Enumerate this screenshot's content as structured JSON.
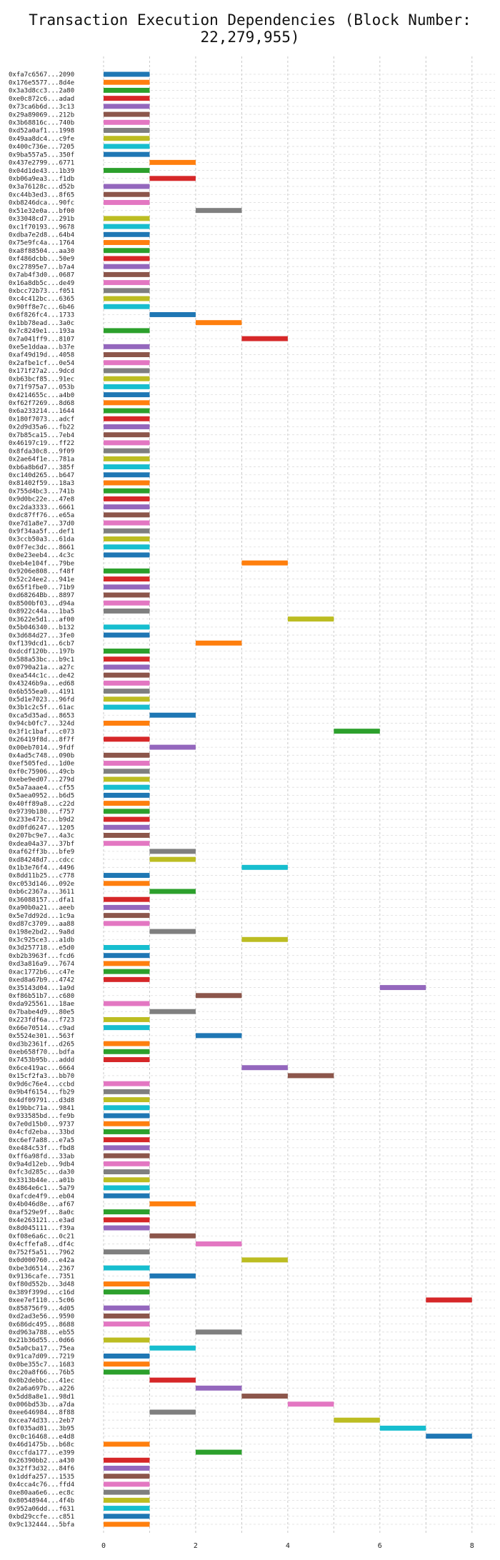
{
  "chart_data": {
    "type": "bar",
    "orientation": "horizontal-gantt",
    "title": "Transaction Execution Dependencies (Block Number: 22,279,955)",
    "xlabel": "",
    "ylabel": "",
    "xlim": [
      0,
      8.5
    ],
    "xticks": [
      0,
      2,
      4,
      6,
      8
    ],
    "grid": true,
    "legend": "none",
    "palette": [
      "#1f77b4",
      "#ff7f0e",
      "#2ca02c",
      "#d62728",
      "#9467bd",
      "#8c564b",
      "#e377c2",
      "#7f7f7f",
      "#bcbd22",
      "#17becf"
    ],
    "transactions": [
      {
        "label": "0xfa7c6567...2090",
        "start": 0,
        "end": 1
      },
      {
        "label": "0x176e5577...8d4e",
        "start": 0,
        "end": 1
      },
      {
        "label": "0x3a3d8cc3...2a80",
        "start": 0,
        "end": 1
      },
      {
        "label": "0xe0c872c6...adad",
        "start": 0,
        "end": 1
      },
      {
        "label": "0x73ca6b6d...3c13",
        "start": 0,
        "end": 1
      },
      {
        "label": "0x29a89069...212b",
        "start": 0,
        "end": 1
      },
      {
        "label": "0x3b68816c...740b",
        "start": 0,
        "end": 1
      },
      {
        "label": "0xd52a0af1...1998",
        "start": 0,
        "end": 1
      },
      {
        "label": "0x49aa8dc4...c9fe",
        "start": 0,
        "end": 1
      },
      {
        "label": "0x400c736e...7205",
        "start": 0,
        "end": 1
      },
      {
        "label": "0x9ba557a5...350f",
        "start": 0,
        "end": 1
      },
      {
        "label": "0x437e2799...6771",
        "start": 1,
        "end": 2
      },
      {
        "label": "0x04d1de43...1b39",
        "start": 0,
        "end": 1
      },
      {
        "label": "0xb06a9ea3...f1db",
        "start": 1,
        "end": 2
      },
      {
        "label": "0x3a76128c...d52b",
        "start": 0,
        "end": 1
      },
      {
        "label": "0xc44b3ed3...8f65",
        "start": 0,
        "end": 1
      },
      {
        "label": "0xb8246dca...90fc",
        "start": 0,
        "end": 1
      },
      {
        "label": "0x51e32e0a...bf00",
        "start": 2,
        "end": 3
      },
      {
        "label": "0x33048cd7...291b",
        "start": 0,
        "end": 1
      },
      {
        "label": "0xc1f70193...9678",
        "start": 0,
        "end": 1
      },
      {
        "label": "0xdba7e2d8...64b4",
        "start": 0,
        "end": 1
      },
      {
        "label": "0x75e9fc4a...1764",
        "start": 0,
        "end": 1
      },
      {
        "label": "0xa8f88504...aa30",
        "start": 0,
        "end": 1
      },
      {
        "label": "0xf486dcbb...50e9",
        "start": 0,
        "end": 1
      },
      {
        "label": "0xc27895e7...b7a4",
        "start": 0,
        "end": 1
      },
      {
        "label": "0x7ab4f3d0...0687",
        "start": 0,
        "end": 1
      },
      {
        "label": "0x16a8db5c...de49",
        "start": 0,
        "end": 1
      },
      {
        "label": "0xbcc72b73...f051",
        "start": 0,
        "end": 1
      },
      {
        "label": "0xc4c412bc...6365",
        "start": 0,
        "end": 1
      },
      {
        "label": "0x90ff8e7c...6b46",
        "start": 0,
        "end": 1
      },
      {
        "label": "0x6f826fc4...1733",
        "start": 1,
        "end": 2
      },
      {
        "label": "0x1bb78ead...3a0c",
        "start": 2,
        "end": 3
      },
      {
        "label": "0x7c8249e1...193a",
        "start": 0,
        "end": 1
      },
      {
        "label": "0x7a041ff9...8107",
        "start": 3,
        "end": 4
      },
      {
        "label": "0xe5e1ddaa...b37e",
        "start": 0,
        "end": 1
      },
      {
        "label": "0xaf49d19d...4058",
        "start": 0,
        "end": 1
      },
      {
        "label": "0x2afbe1cf...0e54",
        "start": 0,
        "end": 1
      },
      {
        "label": "0x171f27a2...9dcd",
        "start": 0,
        "end": 1
      },
      {
        "label": "0xb63bcf85...91ec",
        "start": 0,
        "end": 1
      },
      {
        "label": "0x71f975a7...053b",
        "start": 0,
        "end": 1
      },
      {
        "label": "0x4214655c...a4b0",
        "start": 0,
        "end": 1
      },
      {
        "label": "0xf62f7269...8d68",
        "start": 0,
        "end": 1
      },
      {
        "label": "0x6a233214...1644",
        "start": 0,
        "end": 1
      },
      {
        "label": "0x180f7073...adcf",
        "start": 0,
        "end": 1
      },
      {
        "label": "0x2d9d35a6...fb22",
        "start": 0,
        "end": 1
      },
      {
        "label": "0x7b85ca15...7eb4",
        "start": 0,
        "end": 1
      },
      {
        "label": "0x46197c19...ff22",
        "start": 0,
        "end": 1
      },
      {
        "label": "0x8fda30c8...9f09",
        "start": 0,
        "end": 1
      },
      {
        "label": "0x2ae64f1e...781a",
        "start": 0,
        "end": 1
      },
      {
        "label": "0xb6a8b6d7...385f",
        "start": 0,
        "end": 1
      },
      {
        "label": "0xc140d265...b647",
        "start": 0,
        "end": 1
      },
      {
        "label": "0x81402f59...18a3",
        "start": 0,
        "end": 1
      },
      {
        "label": "0x755d4bc3...741b",
        "start": 0,
        "end": 1
      },
      {
        "label": "0x9d0bc22e...47e8",
        "start": 0,
        "end": 1
      },
      {
        "label": "0xc2da3333...6661",
        "start": 0,
        "end": 1
      },
      {
        "label": "0xdc87ff76...e65a",
        "start": 0,
        "end": 1
      },
      {
        "label": "0xe7d1a8e7...37d0",
        "start": 0,
        "end": 1
      },
      {
        "label": "0x9f34aa5f...def1",
        "start": 0,
        "end": 1
      },
      {
        "label": "0x3ccb50a3...61da",
        "start": 0,
        "end": 1
      },
      {
        "label": "0x0f7ec3dc...8661",
        "start": 0,
        "end": 1
      },
      {
        "label": "0x0e23eeb4...4c3c",
        "start": 0,
        "end": 1
      },
      {
        "label": "0xeb4e104f...79be",
        "start": 3,
        "end": 4
      },
      {
        "label": "0x9206e808...f48f",
        "start": 0,
        "end": 1
      },
      {
        "label": "0x52c24ee2...941e",
        "start": 0,
        "end": 1
      },
      {
        "label": "0x65f1fbe0...71b9",
        "start": 0,
        "end": 1
      },
      {
        "label": "0xd68264Bb...8897",
        "start": 0,
        "end": 1
      },
      {
        "label": "0x8500bf03...d94a",
        "start": 0,
        "end": 1
      },
      {
        "label": "0x8922c44a...1ba5",
        "start": 0,
        "end": 1
      },
      {
        "label": "0x3622e5d1...af00",
        "start": 4,
        "end": 5
      },
      {
        "label": "0x5b046340...b132",
        "start": 0,
        "end": 1
      },
      {
        "label": "0x3d684d27...3fe0",
        "start": 0,
        "end": 1
      },
      {
        "label": "0xf139dcd1...6cb7",
        "start": 2,
        "end": 3
      },
      {
        "label": "0xdcdf120b...197b",
        "start": 0,
        "end": 1
      },
      {
        "label": "0x588a53bc...b9c1",
        "start": 0,
        "end": 1
      },
      {
        "label": "0x0790a21a...a27c",
        "start": 0,
        "end": 1
      },
      {
        "label": "0xea544c1c...de42",
        "start": 0,
        "end": 1
      },
      {
        "label": "0x43246b9a...ed68",
        "start": 0,
        "end": 1
      },
      {
        "label": "0x6b555ea0...4191",
        "start": 0,
        "end": 1
      },
      {
        "label": "0x5d1e7023...96fd",
        "start": 0,
        "end": 1
      },
      {
        "label": "0x3b1c2c5f...61ac",
        "start": 0,
        "end": 1
      },
      {
        "label": "0xca5d35ad...8653",
        "start": 1,
        "end": 2
      },
      {
        "label": "0x94cb0fc7...324d",
        "start": 0,
        "end": 1
      },
      {
        "label": "0x3f1c1baf...c073",
        "start": 5,
        "end": 6
      },
      {
        "label": "0x26419f8d...8f7f",
        "start": 0,
        "end": 1
      },
      {
        "label": "0x00eb7014...9fdf",
        "start": 1,
        "end": 2
      },
      {
        "label": "0x4ad5c748...090b",
        "start": 0,
        "end": 1
      },
      {
        "label": "0xef505fed...1d0e",
        "start": 0,
        "end": 1
      },
      {
        "label": "0xf0c75906...49cb",
        "start": 0,
        "end": 1
      },
      {
        "label": "0xebe9ed07...279d",
        "start": 0,
        "end": 1
      },
      {
        "label": "0x5a7aaae4...cf55",
        "start": 0,
        "end": 1
      },
      {
        "label": "0x5aea0952...b6d5",
        "start": 0,
        "end": 1
      },
      {
        "label": "0x40ff89a8...c22d",
        "start": 0,
        "end": 1
      },
      {
        "label": "0x9739b180...f757",
        "start": 0,
        "end": 1
      },
      {
        "label": "0x233e473c...b9d2",
        "start": 0,
        "end": 1
      },
      {
        "label": "0xd0fd6247...1205",
        "start": 0,
        "end": 1
      },
      {
        "label": "0x207bc9e7...4a3c",
        "start": 0,
        "end": 1
      },
      {
        "label": "0xdea04a37...37bf",
        "start": 0,
        "end": 1
      },
      {
        "label": "0xaf62ff3b...bfe9",
        "start": 1,
        "end": 2
      },
      {
        "label": "0xd84248d7...cdcc",
        "start": 1,
        "end": 2
      },
      {
        "label": "0x1b3e76f4...4496",
        "start": 3,
        "end": 4
      },
      {
        "label": "0x8dd11b25...c778",
        "start": 0,
        "end": 1
      },
      {
        "label": "0xc053d146...092e",
        "start": 0,
        "end": 1
      },
      {
        "label": "0xb6c2367a...3611",
        "start": 1,
        "end": 2
      },
      {
        "label": "0x36088157...dfa1",
        "start": 0,
        "end": 1
      },
      {
        "label": "0xa90b0a21...aeeb",
        "start": 0,
        "end": 1
      },
      {
        "label": "0x5e7dd92d...1c9a",
        "start": 0,
        "end": 1
      },
      {
        "label": "0xd87c3709...aa88",
        "start": 0,
        "end": 1
      },
      {
        "label": "0x198e2bd2...9a8d",
        "start": 1,
        "end": 2
      },
      {
        "label": "0x3c925ce3...a1db",
        "start": 3,
        "end": 4
      },
      {
        "label": "0x3d257718...e5d0",
        "start": 0,
        "end": 1
      },
      {
        "label": "0xb2b3963f...fcd6",
        "start": 0,
        "end": 1
      },
      {
        "label": "0xd3a816a9...7674",
        "start": 0,
        "end": 1
      },
      {
        "label": "0xac1772b6...c47e",
        "start": 0,
        "end": 1
      },
      {
        "label": "0xed8a67b9...4742",
        "start": 0,
        "end": 1
      },
      {
        "label": "0x35143d04...1a9d",
        "start": 6,
        "end": 7
      },
      {
        "label": "0xf86b51b7...c680",
        "start": 2,
        "end": 3
      },
      {
        "label": "0xda925561...18ae",
        "start": 0,
        "end": 1
      },
      {
        "label": "0x7babe4d9...80e5",
        "start": 1,
        "end": 2
      },
      {
        "label": "0x223fdf6a...f723",
        "start": 0,
        "end": 1
      },
      {
        "label": "0x66e70514...c9ad",
        "start": 0,
        "end": 1
      },
      {
        "label": "0x5524e301...563f",
        "start": 2,
        "end": 3
      },
      {
        "label": "0xd3b2361f...d265",
        "start": 0,
        "end": 1
      },
      {
        "label": "0xeb658f70...bdfa",
        "start": 0,
        "end": 1
      },
      {
        "label": "0x7453b95b...addd",
        "start": 0,
        "end": 1
      },
      {
        "label": "0x6ce419ac...6664",
        "start": 3,
        "end": 4
      },
      {
        "label": "0x15cf2fa3...bb70",
        "start": 4,
        "end": 5
      },
      {
        "label": "0x9d6c76e4...ccbd",
        "start": 0,
        "end": 1
      },
      {
        "label": "0x9b4f6154...fb29",
        "start": 0,
        "end": 1
      },
      {
        "label": "0x4df09791...d3d8",
        "start": 0,
        "end": 1
      },
      {
        "label": "0x19bbc71a...9841",
        "start": 0,
        "end": 1
      },
      {
        "label": "0x933585bd...fe9b",
        "start": 0,
        "end": 1
      },
      {
        "label": "0x7e0d15b0...9737",
        "start": 0,
        "end": 1
      },
      {
        "label": "0x4cfd2eba...33bd",
        "start": 0,
        "end": 1
      },
      {
        "label": "0xc6ef7a88...e7a5",
        "start": 0,
        "end": 1
      },
      {
        "label": "0xe484c53f...fbd8",
        "start": 0,
        "end": 1
      },
      {
        "label": "0xff6a98fd...33ab",
        "start": 0,
        "end": 1
      },
      {
        "label": "0x9a4d12eb...9db4",
        "start": 0,
        "end": 1
      },
      {
        "label": "0xfc3d285c...da30",
        "start": 0,
        "end": 1
      },
      {
        "label": "0x3313b44e...a01b",
        "start": 0,
        "end": 1
      },
      {
        "label": "0x4864e6c1...5a79",
        "start": 0,
        "end": 1
      },
      {
        "label": "0xafcde4f9...eb04",
        "start": 0,
        "end": 1
      },
      {
        "label": "0x4b046d8e...af67",
        "start": 1,
        "end": 2
      },
      {
        "label": "0xaf529e9f...8a0c",
        "start": 0,
        "end": 1
      },
      {
        "label": "0x4e263121...e3ad",
        "start": 0,
        "end": 1
      },
      {
        "label": "0x8d045111...f39a",
        "start": 0,
        "end": 1
      },
      {
        "label": "0xf08e6a6c...0c21",
        "start": 1,
        "end": 2
      },
      {
        "label": "0x4cffefa8...df4c",
        "start": 2,
        "end": 3
      },
      {
        "label": "0x752f5a51...7962",
        "start": 0,
        "end": 1
      },
      {
        "label": "0x0d000760...e42a",
        "start": 3,
        "end": 4
      },
      {
        "label": "0xbe3d6514...2367",
        "start": 0,
        "end": 1
      },
      {
        "label": "0x9136cafe...7351",
        "start": 1,
        "end": 2
      },
      {
        "label": "0xf80d552b...3d48",
        "start": 0,
        "end": 1
      },
      {
        "label": "0x389f399d...c16d",
        "start": 0,
        "end": 1
      },
      {
        "label": "0xee7ef110...5c06",
        "start": 7,
        "end": 8
      },
      {
        "label": "0x858756f9...4d05",
        "start": 0,
        "end": 1
      },
      {
        "label": "0xd2ad3e56...9590",
        "start": 0,
        "end": 1
      },
      {
        "label": "0x686dc495...8688",
        "start": 0,
        "end": 1
      },
      {
        "label": "0xd963a788...eb55",
        "start": 2,
        "end": 3
      },
      {
        "label": "0x21b36d55...0d66",
        "start": 0,
        "end": 1
      },
      {
        "label": "0x5a0cba17...75ea",
        "start": 1,
        "end": 2
      },
      {
        "label": "0x91ca7d09...7219",
        "start": 0,
        "end": 1
      },
      {
        "label": "0x0be355c7...1683",
        "start": 0,
        "end": 1
      },
      {
        "label": "0xc20a8f66...76b5",
        "start": 0,
        "end": 1
      },
      {
        "label": "0x0b2debbc...41ec",
        "start": 1,
        "end": 2
      },
      {
        "label": "0x2a6a697b...a226",
        "start": 2,
        "end": 3
      },
      {
        "label": "0x5dd8a8e1...98d1",
        "start": 3,
        "end": 4
      },
      {
        "label": "0x006bd53b...a7da",
        "start": 4,
        "end": 5
      },
      {
        "label": "0xee646984...8f88",
        "start": 1,
        "end": 2
      },
      {
        "label": "0xcea74d33...2eb7",
        "start": 5,
        "end": 6
      },
      {
        "label": "0xf035ad81...3b95",
        "start": 6,
        "end": 7
      },
      {
        "label": "0xc0c16468...e4d8",
        "start": 7,
        "end": 8
      },
      {
        "label": "0x46d1475b...b68c",
        "start": 0,
        "end": 1
      },
      {
        "label": "0xccfda177...e399",
        "start": 2,
        "end": 3
      },
      {
        "label": "0x26390bb2...a430",
        "start": 0,
        "end": 1
      },
      {
        "label": "0x32ff3d32...84f6",
        "start": 0,
        "end": 1
      },
      {
        "label": "0x1ddfa257...1535",
        "start": 0,
        "end": 1
      },
      {
        "label": "0x4cca4c76...ffd4",
        "start": 0,
        "end": 1
      },
      {
        "label": "0xe80aa6e6...ec8c",
        "start": 0,
        "end": 1
      },
      {
        "label": "0x80548944...4f4b",
        "start": 0,
        "end": 1
      },
      {
        "label": "0x952a06dd...f631",
        "start": 0,
        "end": 1
      },
      {
        "label": "0xbd29ccfe...c851",
        "start": 0,
        "end": 1
      },
      {
        "label": "0x9c132444...5bfa",
        "start": 0,
        "end": 1
      }
    ]
  }
}
